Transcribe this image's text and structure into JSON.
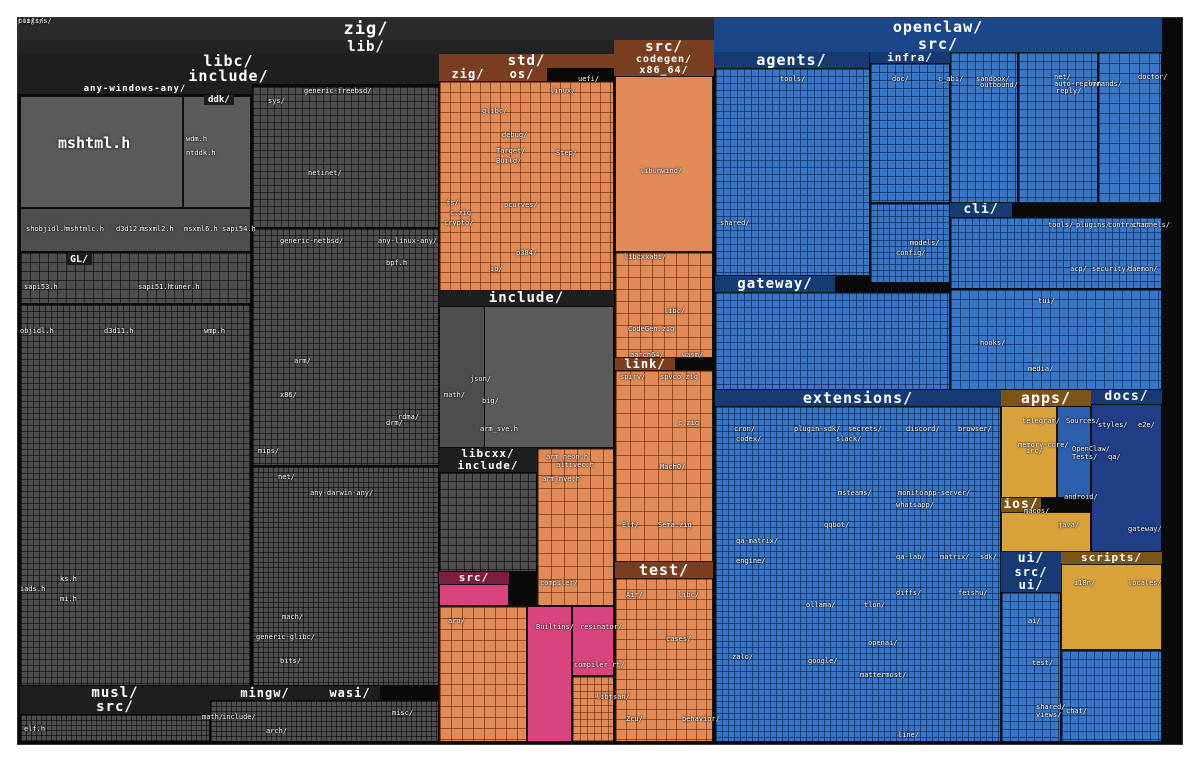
{
  "top_labels": {
    "zig": "zig/",
    "lib": "lib/",
    "openclaw": "openclaw/",
    "openclaw_src": "src/"
  },
  "major_labels": {
    "libc": "libc/",
    "include": "include/",
    "any_windows_any": "any-windows-any/",
    "ddk": "ddk/",
    "mshtml": "mshtml.h",
    "gl": "GL/",
    "musl": "musl/",
    "musl_src": "src/",
    "mingw": "mingw/",
    "wasi": "wasi/",
    "std": "std/",
    "std_zig": "zig/",
    "os": "os/",
    "std_include": "include/",
    "libcxx": "libcxx/",
    "libcxx_include": "include/",
    "std_src": "src/",
    "src": "src/",
    "codegen": "codegen/",
    "x86_64": "x86_64/",
    "link": "link/",
    "test": "test/",
    "agents": "agents/",
    "infra": "infra/",
    "cli": "cli/",
    "gateway": "gateway/",
    "extensions": "extensions/",
    "apps": "apps/",
    "docs": "docs/",
    "ios": "ios/",
    "ui": "ui/",
    "ui_src": "src/",
    "ui_ui": "ui/",
    "scripts": "scripts/"
  },
  "small_labels": [
    {
      "t": "shobjidl.h"
    },
    {
      "t": "mshtmlc.h"
    },
    {
      "t": "d3d12.h"
    },
    {
      "t": "msxml2.h"
    },
    {
      "t": "msxml6.h"
    },
    {
      "t": "sapi54.h"
    },
    {
      "t": "sapi53.h"
    },
    {
      "t": "sapi51.h"
    },
    {
      "t": "tuner.h"
    },
    {
      "t": "objidl.h"
    },
    {
      "t": "d3d11.h"
    },
    {
      "t": "wmp.h"
    },
    {
      "t": "wdm.h"
    },
    {
      "t": "ntddk.h"
    },
    {
      "t": "iads.h"
    },
    {
      "t": "ks.h"
    },
    {
      "t": "mi.h"
    },
    {
      "t": "sys/"
    },
    {
      "t": "generic-freebsd/"
    },
    {
      "t": "netinet/"
    },
    {
      "t": "generic-netbsd/"
    },
    {
      "t": "any-linux-any/"
    },
    {
      "t": "bpf.h"
    },
    {
      "t": "arm/"
    },
    {
      "t": "x86/"
    },
    {
      "t": "drm/"
    },
    {
      "t": "rdma/"
    },
    {
      "t": "mips/"
    },
    {
      "t": "net/"
    },
    {
      "t": "any-darwin-any/"
    },
    {
      "t": "mach/"
    },
    {
      "t": "generic-glibc/"
    },
    {
      "t": "bits/"
    },
    {
      "t": "elf.h"
    },
    {
      "t": "math/"
    },
    {
      "t": "include/"
    },
    {
      "t": "arch/"
    },
    {
      "t": "misc/"
    },
    {
      "t": "glibc/"
    },
    {
      "t": "linux/"
    },
    {
      "t": "uefi/"
    },
    {
      "t": "Target/"
    },
    {
      "t": "Build/"
    },
    {
      "t": "Step/"
    },
    {
      "t": "debug/"
    },
    {
      "t": "fs/"
    },
    {
      "t": "c.zig"
    },
    {
      "t": "crypto/"
    },
    {
      "t": "pcurves/"
    },
    {
      "t": "p384/"
    },
    {
      "t": "io/"
    },
    {
      "t": "json/"
    },
    {
      "t": "math/"
    },
    {
      "t": "big/"
    },
    {
      "t": "arm_sve.h"
    },
    {
      "t": "arm_neon.h"
    },
    {
      "t": "altivec.h"
    },
    {
      "t": "arm_mve.h"
    },
    {
      "t": "compiler/"
    },
    {
      "t": "aro/"
    },
    {
      "t": "Builtins/"
    },
    {
      "t": "resinator/"
    },
    {
      "t": "compiler_rt/"
    },
    {
      "t": "libtsan/"
    },
    {
      "t": "libunwind/"
    },
    {
      "t": "libcxxabi/"
    },
    {
      "t": "libc/"
    },
    {
      "t": "CodeGen.zig"
    },
    {
      "t": "aarch64/"
    },
    {
      "t": "wasm/"
    },
    {
      "t": "spirv/"
    },
    {
      "t": "spvco.zig"
    },
    {
      "t": "c.zig"
    },
    {
      "t": "MachO/"
    },
    {
      "t": "Elf/"
    },
    {
      "t": "Sema.zig"
    },
    {
      "t": "Air/"
    },
    {
      "t": "libc/"
    },
    {
      "t": "Zcu/"
    },
    {
      "t": "behavior/"
    },
    {
      "t": "cases/"
    },
    {
      "t": "tools/"
    },
    {
      "t": "doc/"
    },
    {
      "t": "c_abi/"
    },
    {
      "t": "sandbox/"
    },
    {
      "t": "outbound/"
    },
    {
      "t": "net/"
    },
    {
      "t": "auto-reply/"
    },
    {
      "t": "reply/"
    },
    {
      "t": "commands/"
    },
    {
      "t": "doctor/"
    },
    {
      "t": "shared/"
    },
    {
      "t": "models/"
    },
    {
      "t": "config/"
    },
    {
      "t": "tools/"
    },
    {
      "t": "plugins/"
    },
    {
      "t": "contracts/"
    },
    {
      "t": "channels/"
    },
    {
      "t": "acp/"
    },
    {
      "t": "security/"
    },
    {
      "t": "daemon/"
    },
    {
      "t": "tui/"
    },
    {
      "t": "hooks/"
    },
    {
      "t": "media/"
    },
    {
      "t": "cron/"
    },
    {
      "t": "plugin-sdk/"
    },
    {
      "t": "secrets/"
    },
    {
      "t": "discord/"
    },
    {
      "t": "browser/"
    },
    {
      "t": "codex/"
    },
    {
      "t": "slack/"
    },
    {
      "t": "msteams/"
    },
    {
      "t": "monitor/"
    },
    {
      "t": "app-server/"
    },
    {
      "t": "whatsapp/"
    },
    {
      "t": "qqbot/"
    },
    {
      "t": "qa-matrix/"
    },
    {
      "t": "engine/"
    },
    {
      "t": "qa-lab/"
    },
    {
      "t": "matrix/"
    },
    {
      "t": "sdk/"
    },
    {
      "t": "ollama/"
    },
    {
      "t": "tlon/"
    },
    {
      "t": "diffs/"
    },
    {
      "t": "feishu/"
    },
    {
      "t": "openai/"
    },
    {
      "t": "mattermost/"
    },
    {
      "t": "zalo/"
    },
    {
      "t": "google/"
    },
    {
      "t": "line/"
    },
    {
      "t": "telegram/"
    },
    {
      "t": "memory-core/"
    },
    {
      "t": "irc/"
    },
    {
      "t": "macos/"
    },
    {
      "t": "Sources/"
    },
    {
      "t": "OpenClaw/"
    },
    {
      "t": "Tests/"
    },
    {
      "t": "android/"
    },
    {
      "t": "java/"
    },
    {
      "t": "ai/"
    },
    {
      "t": "test/"
    },
    {
      "t": "shared/"
    },
    {
      "t": "views/"
    },
    {
      "t": "chat/"
    },
    {
      "t": "i18n/"
    },
    {
      "t": "locales/"
    },
    {
      "t": "styles/"
    },
    {
      "t": "e2e/"
    },
    {
      "t": "qa/"
    },
    {
      "t": "gateway/"
    },
    {
      "t": "plugins/"
    },
    {
      "t": "tools/"
    },
    {
      "t": "cli/"
    }
  ]
}
